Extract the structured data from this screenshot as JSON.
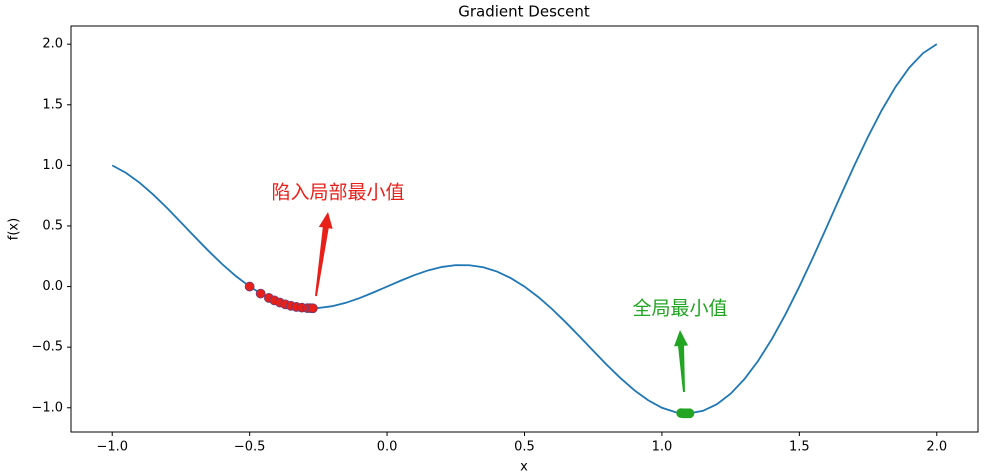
{
  "chart_data": {
    "type": "line",
    "title": "Gradient Descent",
    "xlabel": "x",
    "ylabel": "f(x)",
    "color": "#1f77b4",
    "x": [
      -1.0,
      -0.95,
      -0.9,
      -0.85,
      -0.8,
      -0.75,
      -0.7,
      -0.65,
      -0.6,
      -0.55,
      -0.5,
      -0.45,
      -0.4,
      -0.35,
      -0.3,
      -0.25,
      -0.2,
      -0.15,
      -0.1,
      -0.05,
      0.0,
      0.05,
      0.1,
      0.15,
      0.2,
      0.25,
      0.3,
      0.35,
      0.4,
      0.45,
      0.5,
      0.55,
      0.6,
      0.65,
      0.7,
      0.75,
      0.8,
      0.85,
      0.9,
      0.95,
      1.0,
      1.05,
      1.1,
      1.15,
      1.2,
      1.25,
      1.3,
      1.35,
      1.4,
      1.45,
      1.5,
      1.55,
      1.6,
      1.65,
      1.7,
      1.75,
      1.8,
      1.85,
      1.9,
      1.95,
      2.0
    ],
    "values": [
      1.0,
      0.938,
      0.856,
      0.757,
      0.647,
      0.53,
      0.411,
      0.295,
      0.185,
      0.086,
      0.0,
      -0.07,
      -0.124,
      -0.159,
      -0.176,
      -0.177,
      -0.162,
      -0.134,
      -0.095,
      -0.049,
      0.0,
      0.049,
      0.095,
      0.134,
      0.162,
      0.177,
      0.176,
      0.159,
      0.124,
      0.07,
      0.0,
      -0.086,
      -0.185,
      -0.295,
      -0.411,
      -0.53,
      -0.647,
      -0.757,
      -0.856,
      -0.938,
      -1.0,
      -1.037,
      -1.046,
      -1.025,
      -0.971,
      -0.884,
      -0.764,
      -0.613,
      -0.433,
      -0.227,
      0.0,
      0.242,
      0.494,
      0.749,
      0.999,
      1.237,
      1.456,
      1.648,
      1.807,
      1.926,
      2.0
    ],
    "scatter": [
      {
        "color": "#e8201a",
        "x": [
          -0.5,
          -0.46,
          -0.43,
          -0.41,
          -0.39,
          -0.37,
          -0.35,
          -0.33,
          -0.31,
          -0.29,
          -0.28,
          -0.27
        ],
        "values": [
          0.0,
          -0.058,
          -0.094,
          -0.114,
          -0.132,
          -0.147,
          -0.159,
          -0.168,
          -0.174,
          -0.178,
          -0.178,
          -0.179
        ]
      },
      {
        "color": "#22a522",
        "x": [
          1.07,
          1.08,
          1.09,
          1.1
        ],
        "values": [
          -1.044,
          -1.046,
          -1.046,
          -1.046
        ]
      }
    ],
    "annotations": [
      {
        "text": "陷入局部最小值",
        "color": "#e8201a"
      },
      {
        "text": "全局最小值",
        "color": "#22a522"
      }
    ],
    "xlim": [
      -1.15,
      2.15
    ],
    "ylim": [
      -1.2,
      2.15
    ],
    "xticks": [
      {
        "value": -1.0,
        "label": "−1.0"
      },
      {
        "value": -0.5,
        "label": "−0.5"
      },
      {
        "value": 0.0,
        "label": "0.0"
      },
      {
        "value": 0.5,
        "label": "0.5"
      },
      {
        "value": 1.0,
        "label": "1.0"
      },
      {
        "value": 1.5,
        "label": "1.5"
      },
      {
        "value": 2.0,
        "label": "2.0"
      }
    ],
    "yticks": [
      {
        "value": -1.0,
        "label": "−1.0"
      },
      {
        "value": -0.5,
        "label": "−0.5"
      },
      {
        "value": 0.0,
        "label": "0.0"
      },
      {
        "value": 0.5,
        "label": "0.5"
      },
      {
        "value": 1.0,
        "label": "1.0"
      },
      {
        "value": 1.5,
        "label": "1.5"
      },
      {
        "value": 2.0,
        "label": "2.0"
      }
    ]
  }
}
